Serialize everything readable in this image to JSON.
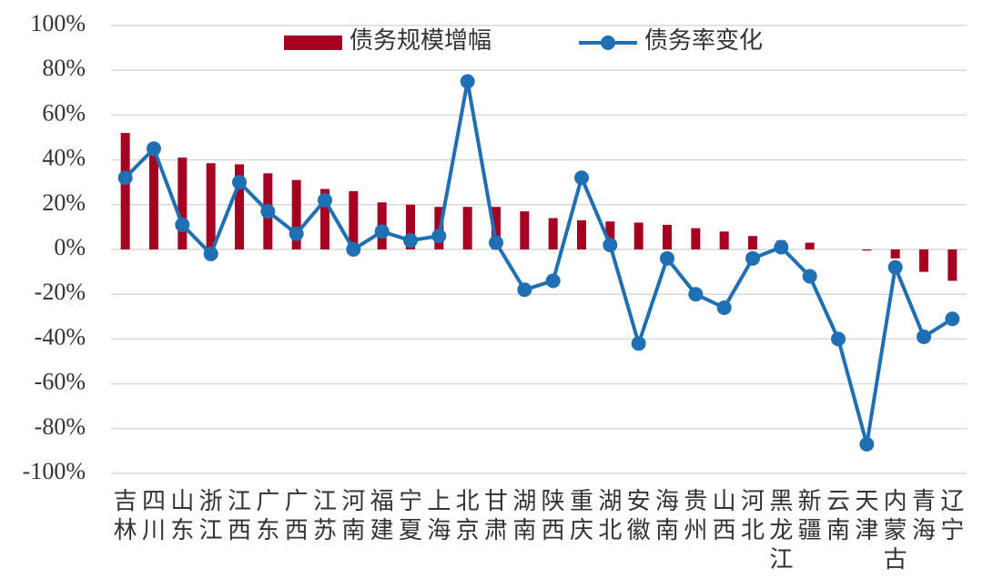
{
  "chart_data": {
    "type": "bar_line",
    "categories": [
      "吉林",
      "四川",
      "山东",
      "浙江",
      "江西",
      "广东",
      "广西",
      "江苏",
      "河南",
      "福建",
      "宁夏",
      "上海",
      "北京",
      "甘肃",
      "湖南",
      "陕西",
      "重庆",
      "湖北",
      "安徽",
      "海南",
      "贵州",
      "山西",
      "河北",
      "黑龙江",
      "新疆",
      "云南",
      "天津",
      "内蒙古",
      "青海",
      "辽宁"
    ],
    "series": [
      {
        "name": "债务规模增幅",
        "type": "bar",
        "color": "#a50021",
        "values": [
          52,
          42,
          41,
          38.5,
          38,
          34,
          31,
          27,
          26,
          21,
          20,
          19,
          19,
          19,
          17,
          14,
          13,
          12.5,
          12,
          11,
          9.5,
          8,
          6,
          4,
          3,
          0,
          -0.5,
          -4,
          -10,
          -14
        ]
      },
      {
        "name": "债务率变化",
        "type": "line",
        "color": "#1f6fb5",
        "values": [
          32,
          45,
          11,
          -2,
          30,
          17,
          7,
          22,
          0,
          8,
          4,
          6,
          75,
          3,
          -18,
          -14,
          32,
          2,
          -42,
          -4,
          -20,
          -26,
          -4,
          1,
          -12,
          -40,
          -87,
          -8,
          -39,
          -31
        ]
      }
    ],
    "ylim": [
      -100,
      100
    ],
    "yticks": [
      {
        "value": -100,
        "label": "-100%"
      },
      {
        "value": -80,
        "label": "-80%"
      },
      {
        "value": -60,
        "label": "-60%"
      },
      {
        "value": -40,
        "label": "-40%"
      },
      {
        "value": -20,
        "label": "-20%"
      },
      {
        "value": 0,
        "label": "0%"
      },
      {
        "value": 20,
        "label": "20%"
      },
      {
        "value": 40,
        "label": "40%"
      },
      {
        "value": 60,
        "label": "60%"
      },
      {
        "value": 80,
        "label": "80%"
      },
      {
        "value": 100,
        "label": "100%"
      }
    ],
    "grid": true
  }
}
